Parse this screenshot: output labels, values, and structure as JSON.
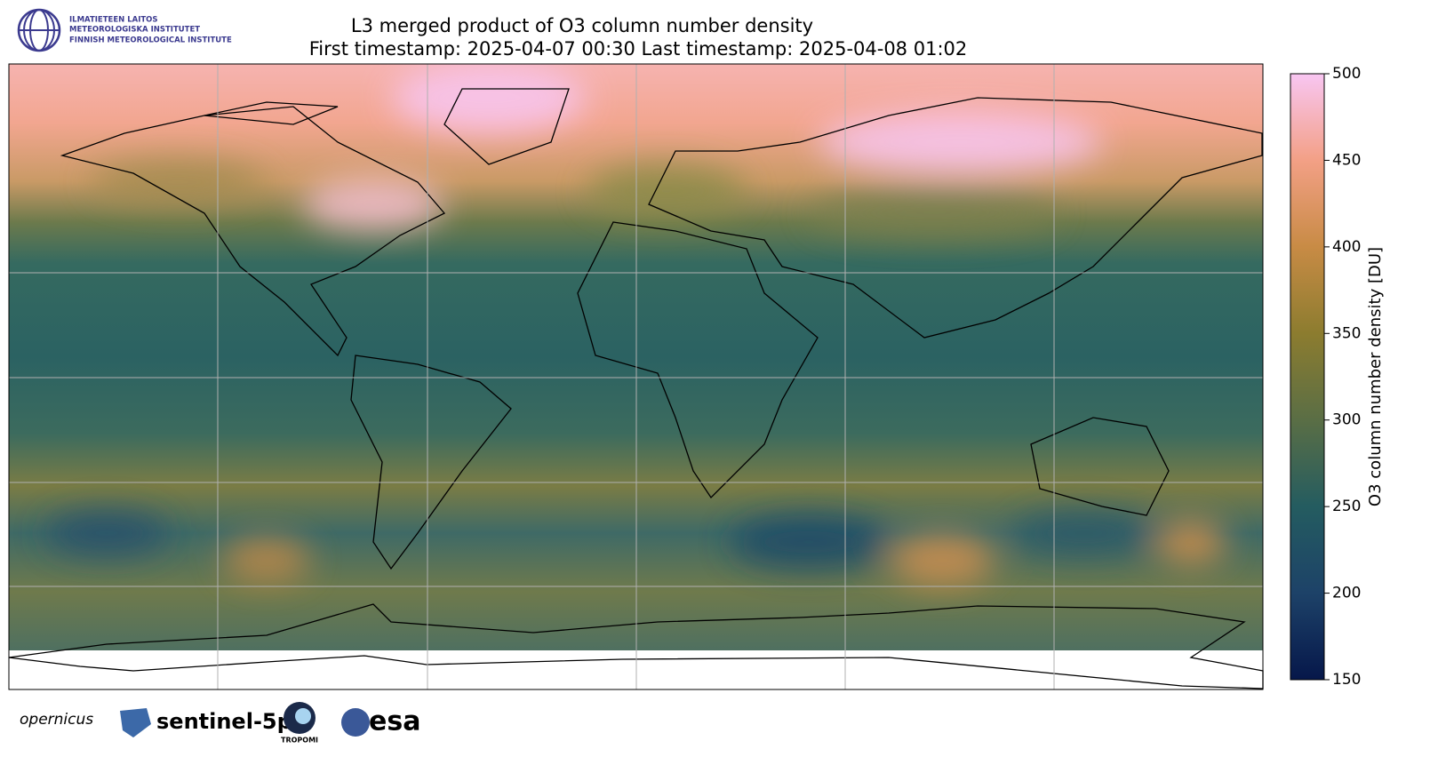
{
  "header": {
    "title_lines": [
      "L3 merged product of O3 column number density",
      "First timestamp: 2025-04-07 00:30   Last timestamp: 2025-04-08 01:02"
    ]
  },
  "institute": {
    "lines": [
      "ILMATIETEEN LAITOS",
      "METEOROLOGISKA INSTITUTET",
      "FINNISH METEOROLOGICAL INSTITUTE"
    ]
  },
  "colorbar": {
    "label": "O3 column number density [DU]",
    "lim": [
      150,
      500
    ],
    "ticks": [
      150,
      200,
      250,
      300,
      350,
      400,
      450,
      500
    ],
    "colormap": [
      "#06174a",
      "#1d4268",
      "#245c60",
      "#5a6e45",
      "#8c7c2f",
      "#c88b45",
      "#f3a086",
      "#f8c6f2"
    ]
  },
  "footer_logos": [
    "opernicus",
    "sentinel-5p",
    "TROPOMI",
    "esa"
  ]
}
